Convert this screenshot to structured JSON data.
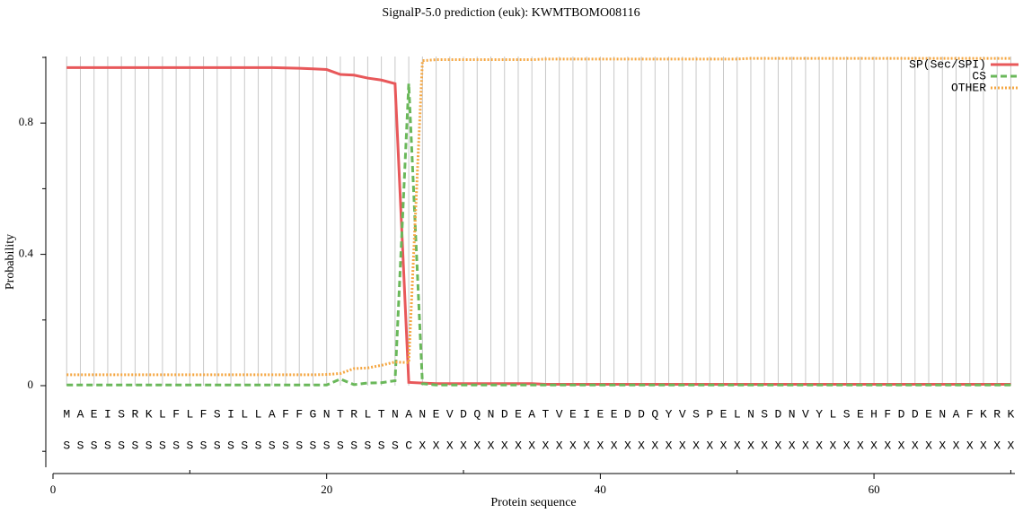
{
  "chart_data": {
    "type": "line",
    "title": "SignalP-5.0 prediction (euk):  KWMTBOMO08116",
    "x_label": "Protein sequence",
    "y_label": "Probability",
    "x": [
      1,
      2,
      3,
      4,
      5,
      6,
      7,
      8,
      9,
      10,
      11,
      12,
      13,
      14,
      15,
      16,
      17,
      18,
      19,
      20,
      21,
      22,
      23,
      24,
      25,
      26,
      27,
      28,
      29,
      30,
      31,
      32,
      33,
      34,
      35,
      36,
      37,
      38,
      39,
      40,
      41,
      42,
      43,
      44,
      45,
      46,
      47,
      48,
      49,
      50,
      51,
      52,
      53,
      54,
      55,
      56,
      57,
      58,
      59,
      60,
      61,
      62,
      63,
      64,
      65,
      66,
      67,
      68,
      69,
      70
    ],
    "residues": [
      "M",
      "A",
      "E",
      "I",
      "S",
      "R",
      "K",
      "L",
      "F",
      "L",
      "F",
      "S",
      "I",
      "L",
      "L",
      "A",
      "F",
      "F",
      "G",
      "N",
      "T",
      "R",
      "L",
      "T",
      "N",
      "A",
      "N",
      "E",
      "V",
      "D",
      "Q",
      "N",
      "D",
      "E",
      "A",
      "T",
      "V",
      "E",
      "I",
      "E",
      "E",
      "D",
      "D",
      "Q",
      "Y",
      "V",
      "S",
      "P",
      "E",
      "L",
      "N",
      "S",
      "D",
      "N",
      "V",
      "Y",
      "L",
      "S",
      "E",
      "H",
      "F",
      "D",
      "D",
      "E",
      "N",
      "A",
      "F",
      "K",
      "R",
      "K"
    ],
    "predicted_labels": [
      "S",
      "S",
      "S",
      "S",
      "S",
      "S",
      "S",
      "S",
      "S",
      "S",
      "S",
      "S",
      "S",
      "S",
      "S",
      "S",
      "S",
      "S",
      "S",
      "S",
      "S",
      "S",
      "S",
      "S",
      "S",
      "C",
      "X",
      "X",
      "X",
      "X",
      "X",
      "X",
      "X",
      "X",
      "X",
      "X",
      "X",
      "X",
      "X",
      "X",
      "X",
      "X",
      "X",
      "X",
      "X",
      "X",
      "X",
      "X",
      "X",
      "X",
      "X",
      "X",
      "X",
      "X",
      "X",
      "X",
      "X",
      "X",
      "X",
      "X",
      "X",
      "X",
      "X",
      "X",
      "X",
      "X",
      "X",
      "X",
      "X",
      "X"
    ],
    "series": [
      {
        "name": "SP(Sec/SPI)",
        "color": "#e8585a",
        "dash": "solid",
        "values": [
          0.969,
          0.969,
          0.969,
          0.969,
          0.969,
          0.969,
          0.969,
          0.969,
          0.969,
          0.969,
          0.969,
          0.969,
          0.969,
          0.969,
          0.969,
          0.969,
          0.968,
          0.967,
          0.965,
          0.963,
          0.948,
          0.946,
          0.937,
          0.931,
          0.92,
          0.01,
          0.008,
          0.006,
          0.006,
          0.006,
          0.006,
          0.006,
          0.006,
          0.006,
          0.006,
          0.004,
          0.004,
          0.004,
          0.004,
          0.004,
          0.004,
          0.004,
          0.004,
          0.004,
          0.004,
          0.004,
          0.004,
          0.004,
          0.004,
          0.004,
          0.004,
          0.004,
          0.004,
          0.004,
          0.004,
          0.004,
          0.004,
          0.004,
          0.004,
          0.004,
          0.004,
          0.004,
          0.004,
          0.004,
          0.004,
          0.004,
          0.004,
          0.004,
          0.004,
          0.004
        ]
      },
      {
        "name": "CS",
        "color": "#6ab85a",
        "dash": "dashed",
        "values": [
          0.002,
          0.002,
          0.002,
          0.002,
          0.002,
          0.002,
          0.002,
          0.002,
          0.002,
          0.002,
          0.002,
          0.002,
          0.002,
          0.002,
          0.002,
          0.002,
          0.002,
          0.002,
          0.002,
          0.002,
          0.02,
          0.003,
          0.008,
          0.009,
          0.015,
          0.92,
          0.006,
          0.002,
          0.002,
          0.002,
          0.002,
          0.002,
          0.002,
          0.002,
          0.002,
          0.002,
          0.002,
          0.002,
          0.002,
          0.002,
          0.002,
          0.002,
          0.002,
          0.002,
          0.002,
          0.002,
          0.002,
          0.002,
          0.002,
          0.002,
          0.002,
          0.002,
          0.002,
          0.002,
          0.002,
          0.002,
          0.002,
          0.002,
          0.002,
          0.002,
          0.002,
          0.002,
          0.002,
          0.002,
          0.002,
          0.002,
          0.002,
          0.002,
          0.002,
          0.002
        ]
      },
      {
        "name": "OTHER",
        "color": "#f5a742",
        "dash": "dotted",
        "values": [
          0.033,
          0.033,
          0.033,
          0.033,
          0.033,
          0.033,
          0.033,
          0.033,
          0.033,
          0.033,
          0.033,
          0.033,
          0.033,
          0.033,
          0.033,
          0.033,
          0.033,
          0.033,
          0.033,
          0.034,
          0.037,
          0.052,
          0.054,
          0.062,
          0.072,
          0.07,
          0.99,
          0.993,
          0.993,
          0.993,
          0.993,
          0.993,
          0.993,
          0.993,
          0.993,
          0.995,
          0.995,
          0.995,
          0.995,
          0.995,
          0.995,
          0.995,
          0.995,
          0.995,
          0.995,
          0.995,
          0.995,
          0.995,
          0.995,
          0.995,
          0.997,
          0.997,
          0.997,
          0.997,
          0.997,
          0.997,
          0.997,
          0.997,
          0.997,
          0.997,
          0.997,
          0.997,
          0.997,
          0.997,
          0.997,
          0.997,
          0.997,
          0.997,
          0.997,
          0.997
        ]
      }
    ],
    "xlim": [
      0,
      70.3
    ],
    "xticks": [
      0,
      20,
      40,
      60
    ],
    "minor_xticks": [
      10,
      30,
      50,
      70
    ],
    "ylim": [
      -0.25,
      1.0
    ],
    "yticks": [
      0,
      0.4,
      0.8
    ],
    "minor_yticks": [
      -0.2,
      0.2,
      0.6,
      1.0
    ],
    "grid": true,
    "legend": "top-right"
  }
}
